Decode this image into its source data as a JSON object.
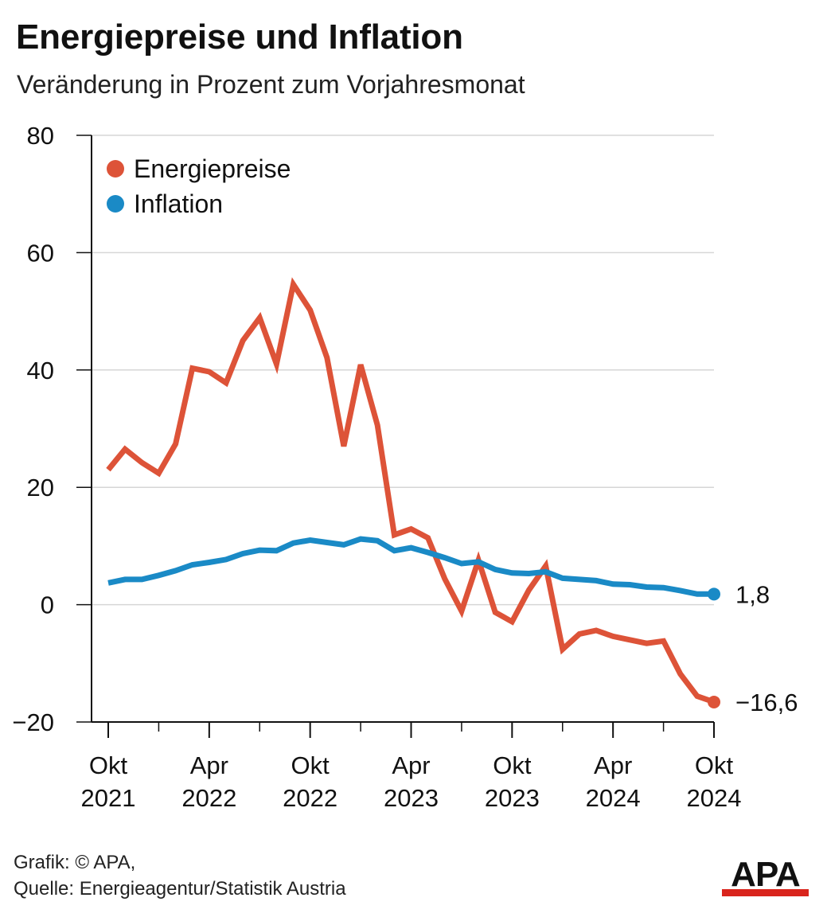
{
  "header": {
    "title": "Energiepreise und Inflation",
    "subtitle": "Veränderung in Prozent zum Vorjahresmonat"
  },
  "footer": {
    "credit": "Grafik: © APA,",
    "source": "Quelle: Energieagentur/Statistik Austria"
  },
  "logo": {
    "text": "APA",
    "colors": {
      "text": "#111111",
      "bar": "#d9241c"
    }
  },
  "chart_data": {
    "type": "line",
    "title": "Energiepreise und Inflation",
    "subtitle": "Veränderung in Prozent zum Vorjahresmonat",
    "xlabel": "",
    "ylabel": "",
    "ylim": [
      -20,
      80
    ],
    "yticks": [
      -20,
      0,
      20,
      40,
      60,
      80
    ],
    "ytick_labels": [
      "−20",
      "0",
      "20",
      "40",
      "60",
      "80"
    ],
    "grid": true,
    "legend_position": "top-left",
    "x": [
      "2021-10",
      "2021-11",
      "2021-12",
      "2022-01",
      "2022-02",
      "2022-03",
      "2022-04",
      "2022-05",
      "2022-06",
      "2022-07",
      "2022-08",
      "2022-09",
      "2022-10",
      "2022-11",
      "2022-12",
      "2023-01",
      "2023-02",
      "2023-03",
      "2023-04",
      "2023-05",
      "2023-06",
      "2023-07",
      "2023-08",
      "2023-09",
      "2023-10",
      "2023-11",
      "2023-12",
      "2024-01",
      "2024-02",
      "2024-03",
      "2024-04",
      "2024-05",
      "2024-06",
      "2024-07",
      "2024-08",
      "2024-09",
      "2024-10"
    ],
    "xticks": [
      {
        "x": "2021-10",
        "line1": "Okt",
        "line2": "2021"
      },
      {
        "x": "2022-04",
        "line1": "Apr",
        "line2": "2022"
      },
      {
        "x": "2022-10",
        "line1": "Okt",
        "line2": "2022"
      },
      {
        "x": "2023-04",
        "line1": "Apr",
        "line2": "2023"
      },
      {
        "x": "2023-10",
        "line1": "Okt",
        "line2": "2023"
      },
      {
        "x": "2024-04",
        "line1": "Apr",
        "line2": "2024"
      },
      {
        "x": "2024-10",
        "line1": "Okt",
        "line2": "2024"
      }
    ],
    "series": [
      {
        "name": "Energiepreise",
        "color": "#dd5338",
        "values": [
          23.0,
          26.5,
          24.2,
          22.4,
          27.4,
          40.3,
          39.7,
          37.8,
          45.0,
          48.9,
          41.0,
          54.6,
          50.2,
          42.1,
          27.0,
          40.9,
          30.6,
          11.9,
          12.9,
          11.4,
          4.4,
          -1.1,
          7.6,
          -1.3,
          -2.9,
          2.5,
          6.6,
          -7.6,
          -5.0,
          -4.4,
          -5.4,
          -6.0,
          -6.6,
          -6.2,
          -11.8,
          -15.6,
          -16.6
        ],
        "end_label": "−16,6"
      },
      {
        "name": "Inflation",
        "color": "#1a8ac6",
        "values": [
          3.7,
          4.3,
          4.3,
          5.0,
          5.8,
          6.8,
          7.2,
          7.7,
          8.7,
          9.3,
          9.2,
          10.5,
          11.0,
          10.6,
          10.2,
          11.2,
          10.9,
          9.2,
          9.7,
          8.9,
          8.0,
          7.0,
          7.3,
          6.0,
          5.4,
          5.3,
          5.6,
          4.5,
          4.3,
          4.1,
          3.5,
          3.4,
          3.0,
          2.9,
          2.4,
          1.8,
          1.8
        ],
        "end_label": "1,8"
      }
    ]
  }
}
